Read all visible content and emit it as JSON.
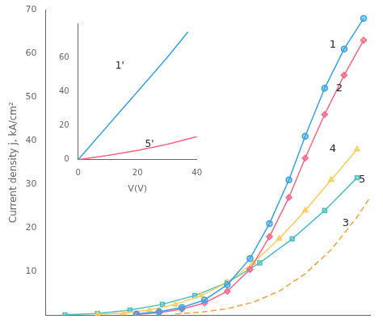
{
  "chart_data": [
    {
      "type": "line",
      "ylabel": "Current density j, kA/cm²",
      "xlim": [
        0,
        1.0
      ],
      "ylim": [
        0,
        70
      ],
      "yticks": [
        10,
        20,
        30,
        40,
        50,
        60,
        70
      ],
      "tick_labels": "y",
      "grid": false,
      "series": [
        {
          "x": [
            0.28,
            0.35,
            0.42,
            0.49,
            0.56,
            0.63,
            0.69,
            0.75,
            0.8,
            0.86,
            0.92,
            0.98
          ],
          "values": [
            0.3,
            0.8,
            1.8,
            3.5,
            7.0,
            13.0,
            21.0,
            31.0,
            41.0,
            52.0,
            61.0,
            68.0
          ],
          "marker": "circle",
          "line_style": "solid"
        },
        {
          "x": [
            0.28,
            0.35,
            0.42,
            0.49,
            0.56,
            0.63,
            0.69,
            0.75,
            0.8,
            0.86,
            0.92,
            0.98
          ],
          "values": [
            0.2,
            0.6,
            1.4,
            2.8,
            5.5,
            10.5,
            18.0,
            27.0,
            36.0,
            46.0,
            55.0,
            63.0
          ],
          "marker": "diamond",
          "line_style": "solid"
        },
        {
          "x": [
            0.4,
            0.48,
            0.56,
            0.64,
            0.72,
            0.8,
            0.88,
            0.96,
            1.0
          ],
          "values": [
            0.3,
            0.7,
            1.5,
            3.0,
            5.5,
            9.5,
            15.0,
            22.5,
            27.0
          ],
          "marker": "none",
          "line_style": "dashed"
        },
        {
          "x": [
            0.16,
            0.24,
            0.32,
            0.4,
            0.48,
            0.56,
            0.64,
            0.72,
            0.8,
            0.88,
            0.96
          ],
          "values": [
            0.2,
            0.5,
            1.2,
            2.5,
            4.5,
            7.5,
            12.0,
            17.5,
            24.0,
            31.0,
            38.0
          ],
          "marker": "triangle",
          "line_style": "solid"
        },
        {
          "x": [
            0.06,
            0.16,
            0.26,
            0.36,
            0.46,
            0.56,
            0.66,
            0.76,
            0.86,
            0.96
          ],
          "values": [
            0.1,
            0.4,
            1.2,
            2.5,
            4.5,
            7.5,
            12.0,
            17.5,
            24.0,
            31.5
          ],
          "marker": "square",
          "line_style": "solid"
        }
      ],
      "annotations": [
        {
          "text": "1",
          "x": 0.87,
          "y": 62
        },
        {
          "text": "2",
          "x": 0.89,
          "y": 52
        },
        {
          "text": "3",
          "x": 0.91,
          "y": 21
        },
        {
          "text": "4",
          "x": 0.87,
          "y": 38
        },
        {
          "text": "5",
          "x": 0.96,
          "y": 31
        }
      ]
    },
    {
      "type": "line",
      "xlabel": "V(V)",
      "xlim": [
        0,
        40
      ],
      "ylim": [
        0,
        80
      ],
      "xticks": [
        0,
        20,
        40
      ],
      "yticks": [
        0,
        20,
        40,
        60
      ],
      "grid": false,
      "series": [
        {
          "x": [
            0,
            10,
            20,
            30,
            37
          ],
          "values": [
            0,
            20,
            40,
            60,
            75
          ],
          "marker": "none",
          "line_style": "solid"
        },
        {
          "x": [
            0,
            10,
            20,
            30,
            40
          ],
          "values": [
            0,
            2.5,
            5.5,
            9.0,
            13.5
          ],
          "marker": "none",
          "line_style": "solid"
        }
      ],
      "annotations": [
        {
          "text": "1'",
          "x": 12,
          "y": 55
        },
        {
          "text": "5'",
          "x": 22,
          "y": 9
        }
      ]
    }
  ]
}
